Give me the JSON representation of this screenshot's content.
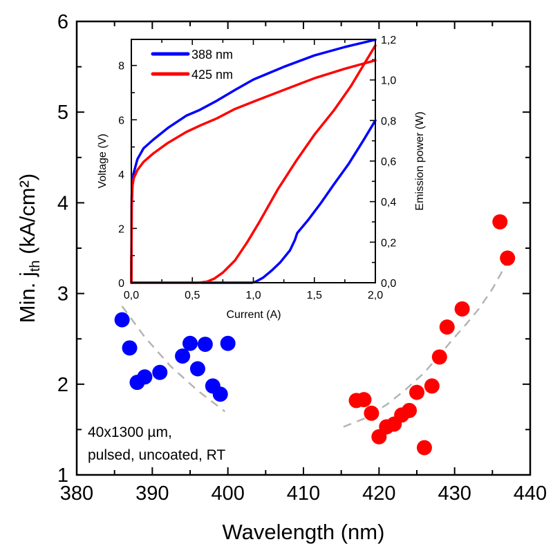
{
  "chart_data": [
    {
      "id": "main",
      "type": "scatter",
      "title": "",
      "xlabel": "Wavelength (nm)",
      "ylabel_main": "Min. j",
      "ylabel_sub": "th",
      "ylabel_unit": " (kA/cm²)",
      "xlim": [
        380,
        440
      ],
      "ylim": [
        1,
        6
      ],
      "xticks": [
        380,
        390,
        400,
        410,
        420,
        430,
        440
      ],
      "xtick_labels": [
        "380",
        "390",
        "400",
        "410",
        "420",
        "430",
        "440"
      ],
      "yticks": [
        1,
        2,
        3,
        4,
        5,
        6
      ],
      "ytick_labels": [
        "1",
        "2",
        "3",
        "4",
        "5",
        "6"
      ],
      "grid": false,
      "annotation": [
        "40x1300 µm,",
        "pulsed, uncoated, RT"
      ],
      "series": [
        {
          "name": "blue-data",
          "color": "#0000ff",
          "marker": "circle",
          "x": [
            386,
            387,
            388,
            389,
            391,
            394,
            395,
            396,
            397,
            398,
            399,
            400
          ],
          "y": [
            2.71,
            2.4,
            2.02,
            2.08,
            2.13,
            2.31,
            2.45,
            2.17,
            2.44,
            1.98,
            1.89,
            2.45
          ]
        },
        {
          "name": "red-data",
          "color": "#ff0000",
          "marker": "circle",
          "x": [
            417,
            418,
            419,
            420,
            421,
            422,
            423,
            424,
            425,
            426,
            427,
            428,
            429,
            431,
            436,
            437
          ],
          "y": [
            1.82,
            1.83,
            1.68,
            1.42,
            1.53,
            1.56,
            1.66,
            1.71,
            1.91,
            1.3,
            1.98,
            2.3,
            2.63,
            2.83,
            3.79,
            3.39
          ]
        },
        {
          "name": "blue-fit",
          "color": "#b4b4b4",
          "style": "dashed",
          "x": [
            386.0,
            389.0,
            392.4,
            396.0,
            399.6
          ],
          "y": [
            2.86,
            2.52,
            2.2,
            1.93,
            1.7
          ]
        },
        {
          "name": "red-fit",
          "color": "#b4b4b4",
          "style": "dashed",
          "x": [
            415.3,
            418.0,
            421.1,
            423.5,
            425.9,
            427.8,
            429.6,
            431.4,
            433.2,
            435.0,
            436.4,
            436.9
          ],
          "y": [
            1.53,
            1.62,
            1.78,
            1.94,
            2.12,
            2.3,
            2.48,
            2.65,
            2.83,
            3.05,
            3.26,
            3.35
          ]
        }
      ]
    },
    {
      "id": "inset",
      "type": "line",
      "title": "",
      "xlabel": "Current (A)",
      "ylabel_left": "Voltage (V)",
      "ylabel_right": "Emission power (W)",
      "xlim": [
        0,
        2.0
      ],
      "ylim_left": [
        0,
        8.96
      ],
      "ylim_right": [
        0,
        1.2
      ],
      "xticks": [
        0,
        0.5,
        1.0,
        1.5,
        2.0
      ],
      "xtick_labels": [
        "0,0",
        "0,5",
        "1,0",
        "1,5",
        "2,0"
      ],
      "yticks_left": [
        0,
        2,
        4,
        6,
        8
      ],
      "ytick_labels_left": [
        "0",
        "2",
        "4",
        "6",
        "8"
      ],
      "yticks_right": [
        0,
        0.2,
        0.4,
        0.6,
        0.8,
        1.0,
        1.2
      ],
      "ytick_labels_right": [
        "0,0",
        "0,2",
        "0,4",
        "0,6",
        "0,8",
        "1,0",
        "1,2"
      ],
      "grid": false,
      "legend": {
        "position": "top-left",
        "entries": [
          {
            "label": "388 nm",
            "color": "#0000ff"
          },
          {
            "label": "425 nm",
            "color": "#ff0000"
          }
        ]
      },
      "series": [
        {
          "name": "388 nm voltage",
          "axis": "left",
          "color": "#0000ff",
          "x": [
            0.0,
            0.003,
            0.01,
            0.02,
            0.05,
            0.1,
            0.18,
            0.3,
            0.45,
            0.56,
            0.7,
            0.85,
            1.0,
            1.25,
            1.5,
            1.75,
            2.0
          ],
          "y": [
            0.0,
            2.8,
            3.7,
            4.05,
            4.55,
            4.95,
            5.27,
            5.7,
            6.15,
            6.36,
            6.7,
            7.1,
            7.48,
            7.95,
            8.37,
            8.68,
            8.95
          ]
        },
        {
          "name": "425 nm voltage",
          "axis": "left",
          "color": "#ff0000",
          "x": [
            0.0,
            0.003,
            0.01,
            0.02,
            0.05,
            0.1,
            0.18,
            0.3,
            0.45,
            0.56,
            0.7,
            0.85,
            1.02,
            1.25,
            1.5,
            1.75,
            2.0
          ],
          "y": [
            0.0,
            3.2,
            3.6,
            3.85,
            4.15,
            4.45,
            4.76,
            5.15,
            5.55,
            5.78,
            6.05,
            6.4,
            6.7,
            7.1,
            7.53,
            7.88,
            8.19
          ]
        },
        {
          "name": "388 nm power",
          "axis": "right",
          "color": "#0000ff",
          "x": [
            0.0,
            0.99,
            1.02,
            1.08,
            1.15,
            1.22,
            1.3,
            1.34,
            1.36,
            1.45,
            1.55,
            1.66,
            1.78,
            1.9,
            2.0
          ],
          "y": [
            0.0,
            0.0,
            0.005,
            0.025,
            0.06,
            0.1,
            0.16,
            0.21,
            0.245,
            0.31,
            0.39,
            0.485,
            0.585,
            0.7,
            0.8
          ]
        },
        {
          "name": "425 nm power",
          "axis": "right",
          "color": "#ff0000",
          "x": [
            0.0,
            0.0,
            0.005,
            0.55,
            0.62,
            0.68,
            0.75,
            0.85,
            0.95,
            1.05,
            1.2,
            1.35,
            1.5,
            1.66,
            1.8,
            1.9,
            2.0
          ],
          "y": [
            0.13,
            0.0,
            0.0,
            0.0,
            0.005,
            0.02,
            0.05,
            0.11,
            0.2,
            0.3,
            0.46,
            0.6,
            0.73,
            0.85,
            0.97,
            1.07,
            1.17
          ]
        }
      ]
    }
  ]
}
